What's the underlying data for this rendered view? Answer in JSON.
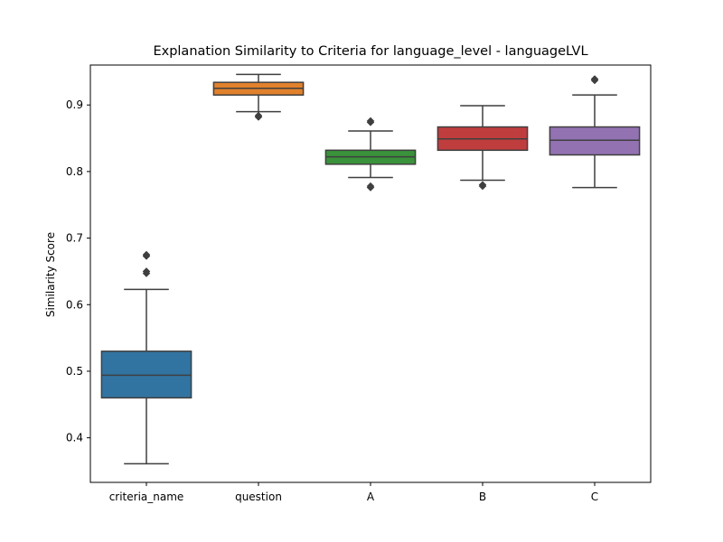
{
  "chart_data": {
    "type": "box",
    "title": "Explanation Similarity to Criteria for language_level - languageLVL",
    "xlabel": "",
    "ylabel": "Similarity Score",
    "ylim": [
      0.333,
      0.96
    ],
    "yticks": [
      0.4,
      0.5,
      0.6,
      0.7,
      0.8,
      0.9
    ],
    "grid": false,
    "categories": [
      "criteria_name",
      "question",
      "A",
      "B",
      "C"
    ],
    "boxes": [
      {
        "category": "criteria_name",
        "color": "#3274a1",
        "whisker_low": 0.361,
        "q1": 0.46,
        "median": 0.494,
        "q3": 0.53,
        "whisker_high": 0.623,
        "outliers": [
          0.647,
          0.65,
          0.673,
          0.675
        ]
      },
      {
        "category": "question",
        "color": "#e1812c",
        "whisker_low": 0.89,
        "q1": 0.915,
        "median": 0.925,
        "q3": 0.934,
        "whisker_high": 0.946,
        "outliers": [
          0.882,
          0.884
        ]
      },
      {
        "category": "A",
        "color": "#3a923a",
        "whisker_low": 0.791,
        "q1": 0.811,
        "median": 0.822,
        "q3": 0.832,
        "whisker_high": 0.861,
        "outliers": [
          0.776,
          0.778,
          0.874,
          0.876
        ]
      },
      {
        "category": "B",
        "color": "#c03d3e",
        "whisker_low": 0.787,
        "q1": 0.832,
        "median": 0.849,
        "q3": 0.867,
        "whisker_high": 0.899,
        "outliers": [
          0.778,
          0.78
        ]
      },
      {
        "category": "C",
        "color": "#9372b2",
        "whisker_low": 0.776,
        "q1": 0.825,
        "median": 0.847,
        "q3": 0.867,
        "whisker_high": 0.915,
        "outliers": [
          0.937,
          0.939
        ]
      }
    ],
    "line_color": "#3f3f3f"
  }
}
